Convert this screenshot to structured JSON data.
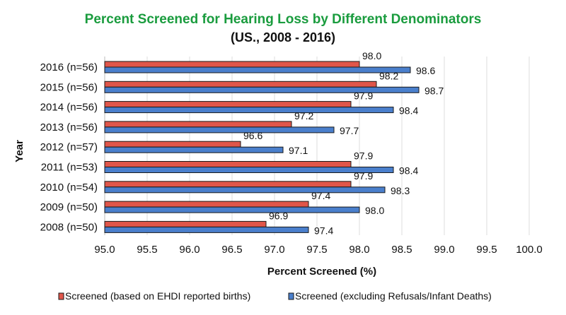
{
  "chart_data": {
    "type": "bar",
    "orientation": "horizontal",
    "title": "Percent Screened for Hearing Loss by Different Denominators",
    "subtitle": "(US., 2008 - 2016)",
    "xlabel": "Percent Screened (%)",
    "ylabel": "Year",
    "xlim": [
      95.0,
      100.0
    ],
    "xticks": [
      "95.0",
      "95.5",
      "96.0",
      "96.5",
      "97.0",
      "97.5",
      "98.0",
      "98.5",
      "99.0",
      "99.5",
      "100.0"
    ],
    "grid": "vertical",
    "legend": "bottom",
    "categories": [
      "2016 (n=56)",
      "2015 (n=56)",
      "2014 (n=56)",
      "2013 (n=56)",
      "2012 (n=57)",
      "2011 (n=53)",
      "2010 (n=54)",
      "2009 (n=50)",
      "2008 (n=50)"
    ],
    "series": [
      {
        "name": "Screened (based on EHDI reported births)",
        "color": "#e0564a",
        "values": [
          98.0,
          98.2,
          97.9,
          97.2,
          96.6,
          97.9,
          97.9,
          97.4,
          96.9
        ]
      },
      {
        "name": "Screened (excluding Refusals/Infant Deaths)",
        "color": "#4a7fcc",
        "values": [
          98.6,
          98.7,
          98.4,
          97.7,
          97.1,
          98.4,
          98.3,
          98.0,
          97.4
        ]
      }
    ]
  }
}
